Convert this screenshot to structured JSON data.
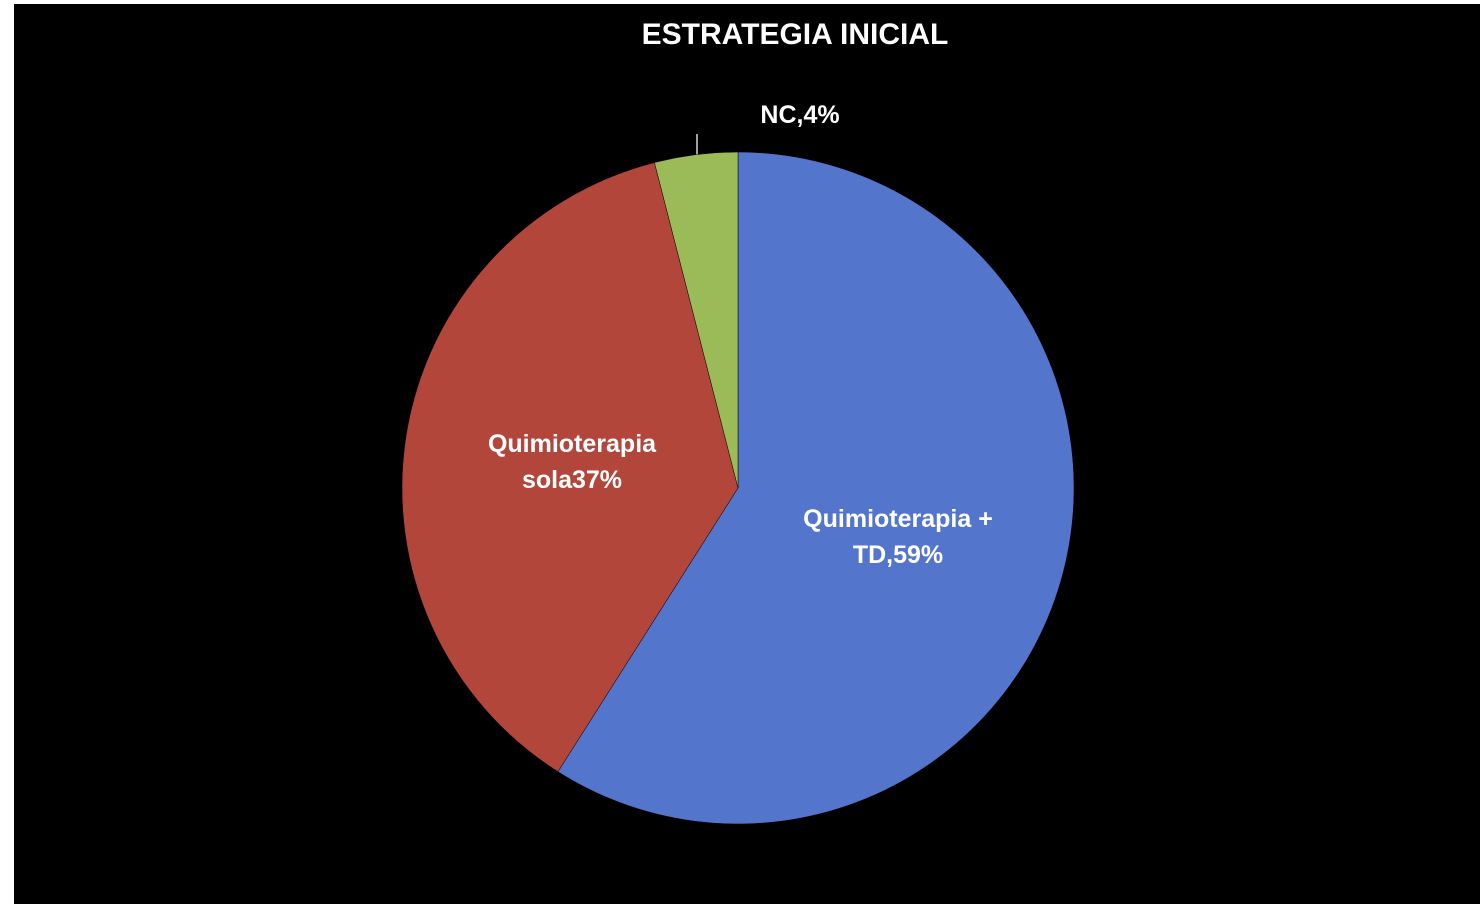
{
  "chart_data": {
    "type": "pie",
    "title": "ESTRATEGIA INICIAL",
    "categories": [
      "Quimioterapia + TD",
      "Quimioterapia sola",
      "NC"
    ],
    "values": [
      59,
      37,
      4
    ],
    "value_labels": [
      "Quimioterapia + TD,59%",
      "Quimioterapia sola37%",
      "NC,4%"
    ],
    "colors": [
      "#5375cb",
      "#b3463b",
      "#9bbb59"
    ]
  }
}
